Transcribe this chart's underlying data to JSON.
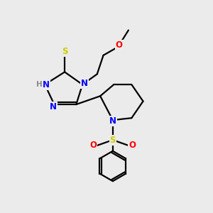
{
  "background_color": "#ebebeb",
  "atom_colors": {
    "N": "#0000ff",
    "O": "#ff0000",
    "S_thiol": "#cccc00",
    "S_sulfonyl": "#cccc00",
    "C": "#000000",
    "H": "#888888"
  },
  "line_color": "#000000",
  "line_width": 1.6,
  "font_size_atom": 8.5
}
